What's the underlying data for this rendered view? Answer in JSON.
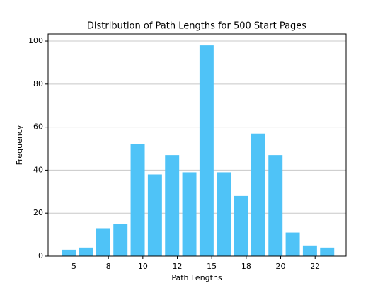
{
  "chart_data": {
    "type": "bar",
    "title": "Distribution of Path Lengths for 500 Start Pages",
    "xlabel": "Path Lengths",
    "ylabel": "Frequency",
    "x": [
      1,
      2,
      3,
      4,
      5,
      6,
      7,
      8,
      9,
      10,
      11,
      12,
      13,
      14,
      15,
      16
    ],
    "values": [
      3,
      4,
      13,
      15,
      52,
      38,
      47,
      39,
      98,
      39,
      28,
      57,
      47,
      11,
      5,
      4
    ],
    "color": "#4fc3f7",
    "xlim": [
      -0.2,
      17.1
    ],
    "xticks": [
      {
        "value": 1.3,
        "label": "5"
      },
      {
        "value": 3.3,
        "label": "8"
      },
      {
        "value": 5.3,
        "label": "10"
      },
      {
        "value": 7.3,
        "label": "12"
      },
      {
        "value": 9.3,
        "label": "15"
      },
      {
        "value": 11.3,
        "label": "18"
      },
      {
        "value": 13.3,
        "label": "20"
      },
      {
        "value": 15.3,
        "label": "22"
      }
    ],
    "ylim": [
      0,
      103.3
    ],
    "yticks": [
      0,
      20,
      40,
      60,
      80,
      100
    ],
    "grid": true
  }
}
